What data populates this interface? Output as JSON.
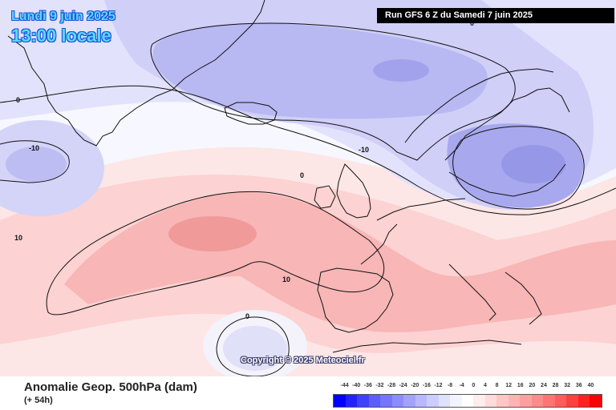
{
  "header": {
    "date": "Lundi 9 juin 2025",
    "time": "13:00 locale",
    "run": "Run GFS 6 Z du Samedi 7 juin 2025"
  },
  "copyright": "Copyright © 2025 Meteociel.fr",
  "footer": {
    "title": "Anomalie Geop. 500hPa (dam)",
    "subtitle": "(+ 54h)"
  },
  "contour_labels": [
    "0",
    "-10",
    "-10",
    "0",
    "10",
    "10",
    "0",
    "0"
  ],
  "legend": {
    "ticks": [
      "-44",
      "-40",
      "-36",
      "-32",
      "-28",
      "-24",
      "-20",
      "-16",
      "-12",
      "-8",
      "-4",
      "0",
      "4",
      "8",
      "12",
      "16",
      "20",
      "24",
      "28",
      "32",
      "36",
      "40"
    ],
    "colors": [
      "#0000ff",
      "#2222ff",
      "#4040ff",
      "#5c5cff",
      "#7575ff",
      "#8c8cff",
      "#a3a3ff",
      "#b8b8ff",
      "#cccdff",
      "#e0e0ff",
      "#f3f3ff",
      "#ffffff",
      "#ffecec",
      "#ffdada",
      "#ffc6c6",
      "#ffb3b3",
      "#ff9f9f",
      "#ff8a8a",
      "#ff7373",
      "#ff5c5c",
      "#ff4040",
      "#ff2020",
      "#ff0000"
    ]
  }
}
